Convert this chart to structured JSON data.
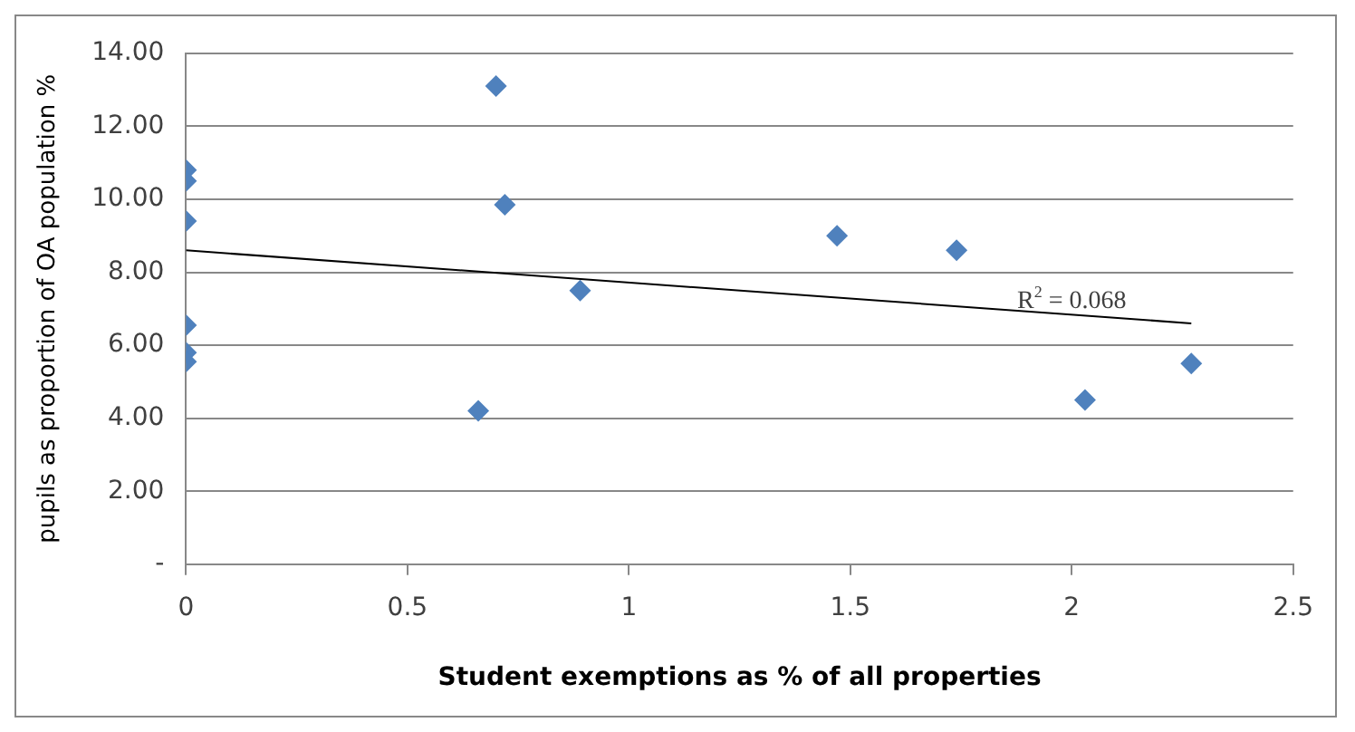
{
  "chart_data": {
    "type": "scatter",
    "xlabel": "Student exemptions as % of all properties",
    "ylabel": "pupils as proportion of OA population %",
    "marker": "diamond",
    "grid": "y",
    "legend": false,
    "xlim": [
      0,
      2.5
    ],
    "xticks": [
      0,
      0.5,
      1,
      1.5,
      2,
      2.5
    ],
    "ylim": [
      0,
      14
    ],
    "yticks": [
      {
        "value": 0,
        "label": "-"
      },
      {
        "value": 2,
        "label": "2.00"
      },
      {
        "value": 4,
        "label": "4.00"
      },
      {
        "value": 6,
        "label": "6.00"
      },
      {
        "value": 8,
        "label": "8.00"
      },
      {
        "value": 10,
        "label": "10.00"
      },
      {
        "value": 12,
        "label": "12.00"
      },
      {
        "value": 14,
        "label": "14.00"
      }
    ],
    "series": [
      {
        "color": "#4f81bd",
        "x": [
          0,
          0,
          0,
          0,
          0,
          0,
          0.7,
          0.72,
          0.66,
          0.89,
          1.47,
          1.74,
          2.03,
          2.27
        ],
        "values": [
          10.8,
          10.5,
          9.4,
          6.55,
          5.8,
          5.55,
          13.1,
          9.85,
          4.2,
          7.5,
          9.0,
          8.6,
          4.5,
          5.5
        ]
      },
      {
        "type": "line",
        "color": "#000000",
        "marker": "none",
        "x": [
          0,
          2.27
        ],
        "values": [
          8.6,
          6.6
        ]
      }
    ],
    "annotations": [
      {
        "text": "R$^{2}$ = 0.068",
        "x": 2.0,
        "y": 6.7
      }
    ]
  }
}
